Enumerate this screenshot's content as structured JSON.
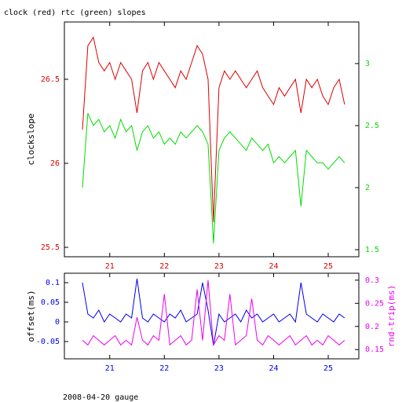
{
  "title": "clock (red) rtc (green) slopes",
  "footer": "2008-04-20 gauge",
  "chart_data": [
    {
      "type": "line",
      "ylabel": "clockslope",
      "x": [
        20.5,
        20.6,
        20.7,
        20.8,
        20.9,
        21.0,
        21.1,
        21.2,
        21.3,
        21.4,
        21.5,
        21.6,
        21.7,
        21.8,
        21.9,
        22.0,
        22.1,
        22.2,
        22.3,
        22.4,
        22.5,
        22.6,
        22.7,
        22.8,
        22.9,
        23.0,
        23.1,
        23.2,
        23.3,
        23.4,
        23.5,
        23.6,
        23.7,
        23.8,
        23.9,
        24.0,
        24.1,
        24.2,
        24.3,
        24.4,
        24.5,
        24.6,
        24.7,
        24.8,
        24.9,
        25.0,
        25.1,
        25.2,
        25.3
      ],
      "xlim": [
        20.17,
        25.56
      ],
      "xticks": [
        21,
        22,
        23,
        24,
        25
      ],
      "ylim": [
        25.444,
        26.841
      ],
      "yticks": [
        25.5,
        26,
        26.5
      ],
      "y2lim": [
        1.443,
        3.335
      ],
      "y2ticks": [
        1.5,
        2,
        2.5,
        3
      ],
      "series": [
        {
          "name": "clock",
          "color": "#dd0000",
          "values": [
            26.2,
            26.7,
            26.75,
            26.6,
            26.55,
            26.6,
            26.5,
            26.6,
            26.55,
            26.5,
            26.3,
            26.55,
            26.6,
            26.5,
            26.6,
            26.55,
            26.5,
            26.45,
            26.55,
            26.5,
            26.6,
            26.7,
            26.65,
            26.5,
            25.65,
            26.45,
            26.55,
            26.5,
            26.55,
            26.5,
            26.45,
            26.5,
            26.55,
            26.45,
            26.4,
            26.35,
            26.45,
            26.4,
            26.45,
            26.5,
            26.3,
            26.5,
            26.45,
            26.5,
            26.4,
            26.35,
            26.45,
            26.5,
            26.35
          ]
        },
        {
          "name": "rtc",
          "color": "#00dd00",
          "axis": "y2",
          "values": [
            2.0,
            2.6,
            2.5,
            2.55,
            2.45,
            2.5,
            2.4,
            2.55,
            2.45,
            2.5,
            2.3,
            2.45,
            2.5,
            2.4,
            2.45,
            2.35,
            2.4,
            2.35,
            2.45,
            2.4,
            2.45,
            2.5,
            2.45,
            2.35,
            1.55,
            2.3,
            2.4,
            2.45,
            2.4,
            2.35,
            2.3,
            2.4,
            2.35,
            2.3,
            2.35,
            2.2,
            2.25,
            2.2,
            2.25,
            2.3,
            1.85,
            2.3,
            2.25,
            2.2,
            2.2,
            2.15,
            2.2,
            2.25,
            2.2
          ]
        }
      ]
    },
    {
      "type": "line",
      "ylabel": "offset(ms)",
      "y2label": "rnd-trip(ms)",
      "x": [
        20.5,
        20.6,
        20.7,
        20.8,
        20.9,
        21.0,
        21.1,
        21.2,
        21.3,
        21.4,
        21.5,
        21.6,
        21.7,
        21.8,
        21.9,
        22.0,
        22.1,
        22.2,
        22.3,
        22.4,
        22.5,
        22.6,
        22.7,
        22.8,
        22.9,
        23.0,
        23.1,
        23.2,
        23.3,
        23.4,
        23.5,
        23.6,
        23.7,
        23.8,
        23.9,
        24.0,
        24.1,
        24.2,
        24.3,
        24.4,
        24.5,
        24.6,
        24.7,
        24.8,
        24.9,
        25.0,
        25.1,
        25.2,
        25.3
      ],
      "xlim": [
        20.17,
        25.56
      ],
      "xticks": [
        21,
        22,
        23,
        24,
        25
      ],
      "ylim": [
        -0.094,
        0.124
      ],
      "yticks": [
        -0.05,
        0,
        0.05,
        0.1
      ],
      "y2lim": [
        0.13,
        0.315
      ],
      "y2ticks": [
        0.15,
        0.2,
        0.25,
        0.3
      ],
      "series": [
        {
          "name": "offset",
          "color": "#0000ee",
          "values": [
            0.1,
            0.02,
            0.01,
            0.03,
            0.0,
            0.02,
            0.01,
            0.0,
            0.02,
            0.01,
            0.11,
            0.01,
            0.0,
            0.02,
            0.01,
            0.0,
            0.02,
            0.01,
            0.03,
            0.0,
            0.01,
            0.02,
            0.1,
            0.03,
            -0.06,
            0.02,
            0.0,
            0.01,
            0.02,
            0.0,
            0.03,
            0.01,
            0.02,
            0.0,
            0.01,
            0.02,
            0.0,
            0.01,
            0.02,
            0.0,
            0.1,
            0.02,
            0.01,
            0.0,
            0.02,
            0.01,
            0.0,
            0.02,
            0.01
          ]
        },
        {
          "name": "rnd-trip",
          "color": "#ee00ee",
          "axis": "y2",
          "values": [
            0.17,
            0.16,
            0.18,
            0.17,
            0.16,
            0.17,
            0.18,
            0.16,
            0.17,
            0.16,
            0.22,
            0.17,
            0.16,
            0.18,
            0.17,
            0.27,
            0.16,
            0.17,
            0.18,
            0.16,
            0.17,
            0.28,
            0.17,
            0.3,
            0.16,
            0.18,
            0.17,
            0.27,
            0.16,
            0.17,
            0.18,
            0.26,
            0.17,
            0.16,
            0.18,
            0.17,
            0.16,
            0.17,
            0.18,
            0.16,
            0.17,
            0.18,
            0.16,
            0.17,
            0.16,
            0.18,
            0.17,
            0.16,
            0.17
          ]
        }
      ]
    }
  ]
}
